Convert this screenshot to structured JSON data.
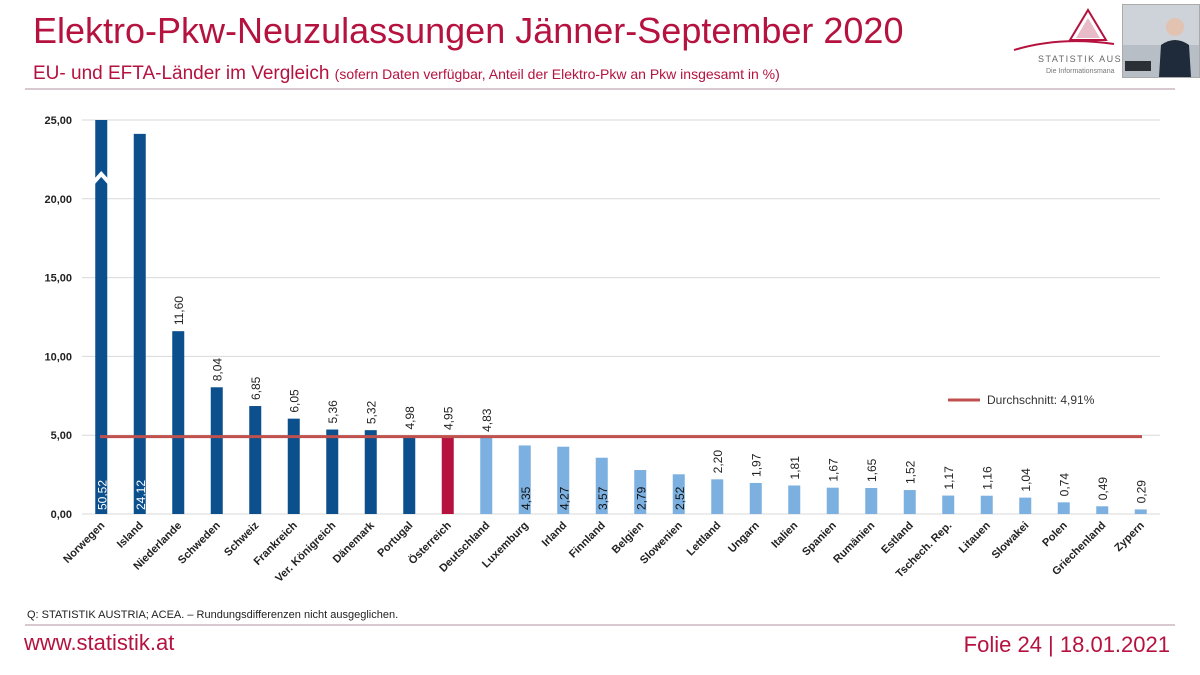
{
  "slide": {
    "title": "Elektro-Pkw-Neuzulassungen Jänner-September 2020",
    "subtitle": "EU- und EFTA-Länder im Vergleich",
    "subtitle_note": "(sofern Daten verfügbar, Anteil der Elektro-Pkw an Pkw insgesamt in %)",
    "logo_text": "STATISTIK AUS",
    "logo_tagline": "Die Informationsmana",
    "source": "Q: STATISTIK AUSTRIA; ACEA. – Rundungsdifferenzen nicht ausgeglichen.",
    "website": "www.statistik.at",
    "slide_info": "Folie 24 | 18.01.2021"
  },
  "colors": {
    "dark_blue": "#0b4f8c",
    "light_blue": "#7cb0e0",
    "highlight": "#b5123f",
    "average_line": "#c0504d",
    "brand": "#b5123f"
  },
  "chart_data": {
    "type": "bar",
    "categories": [
      "Norwegen",
      "Island",
      "Niederlande",
      "Schweden",
      "Schweiz",
      "Frankreich",
      "Ver. Königreich",
      "Dänemark",
      "Portugal",
      "Österreich",
      "Deutschland",
      "Luxemburg",
      "Irland",
      "Finnland",
      "Belgien",
      "Slowenien",
      "Lettland",
      "Ungarn",
      "Italien",
      "Spanien",
      "Rumänien",
      "Estland",
      "Tschech. Rep.",
      "Litauen",
      "Slowakei",
      "Polen",
      "Griechenland",
      "Zypern"
    ],
    "values": [
      50.52,
      24.12,
      11.6,
      8.04,
      6.85,
      6.05,
      5.36,
      5.32,
      4.98,
      4.95,
      4.83,
      4.35,
      4.27,
      3.57,
      2.79,
      2.52,
      2.2,
      1.97,
      1.81,
      1.67,
      1.65,
      1.52,
      1.17,
      1.16,
      1.04,
      0.74,
      0.49,
      0.29
    ],
    "value_labels": [
      "50,52",
      "24,12",
      "11,60",
      "8,04",
      "6,85",
      "6,05",
      "5,36",
      "5,32",
      "4,98",
      "4,95",
      "4,83",
      "4,35",
      "4,27",
      "3,57",
      "2,79",
      "2,52",
      "2,20",
      "1,97",
      "1,81",
      "1,67",
      "1,65",
      "1,52",
      "1,17",
      "1,16",
      "1,04",
      "0,74",
      "0,49",
      "0,29"
    ],
    "bar_colors": [
      "dark",
      "dark",
      "dark",
      "dark",
      "dark",
      "dark",
      "dark",
      "dark",
      "dark",
      "highlight",
      "light",
      "light",
      "light",
      "light",
      "light",
      "light",
      "light",
      "light",
      "light",
      "light",
      "light",
      "light",
      "light",
      "light",
      "light",
      "light",
      "light",
      "light"
    ],
    "yticks": [
      "0,00",
      "5,00",
      "10,00",
      "15,00",
      "20,00",
      "25,00"
    ],
    "ylim": [
      0,
      25
    ],
    "axis_break": "Norwegen",
    "average": {
      "value": 4.91,
      "label": "Durchschnitt: 4,91%",
      "legend_position": "right"
    },
    "grid": true
  }
}
